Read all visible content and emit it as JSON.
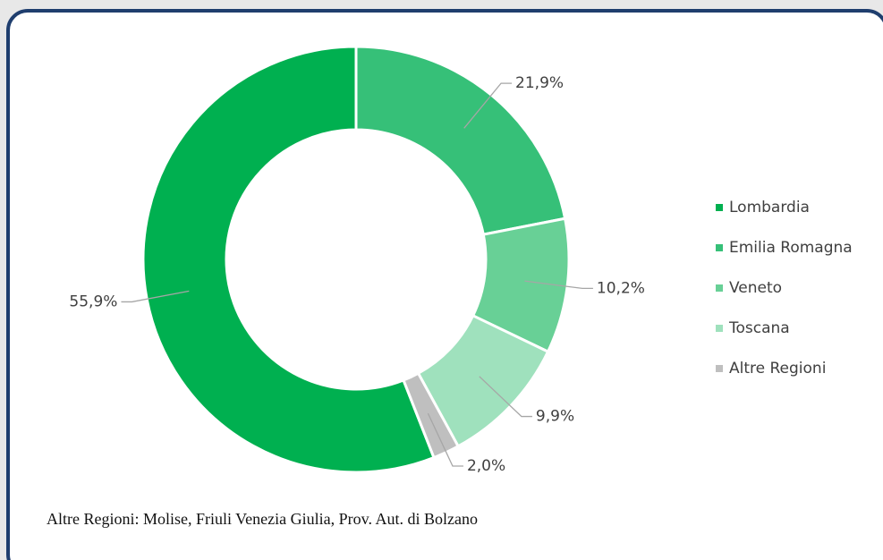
{
  "chart_data": {
    "type": "donut",
    "categories": [
      "Lombardia",
      "Emilia Romagna",
      "Veneto",
      "Toscana",
      "Altre Regioni"
    ],
    "values": [
      55.9,
      21.9,
      10.2,
      9.9,
      2.0
    ],
    "value_labels": [
      "55,9%",
      "21,9%",
      "10,2%",
      "9,9%",
      "2,0%"
    ],
    "colors": [
      "#00b050",
      "#36c078",
      "#68d096",
      "#9fe1bd",
      "#bfbfbf"
    ],
    "legend": "right",
    "note": "Altre Regioni: Molise, Friuli Venezia Giulia, Prov. Aut. di Bolzano"
  }
}
